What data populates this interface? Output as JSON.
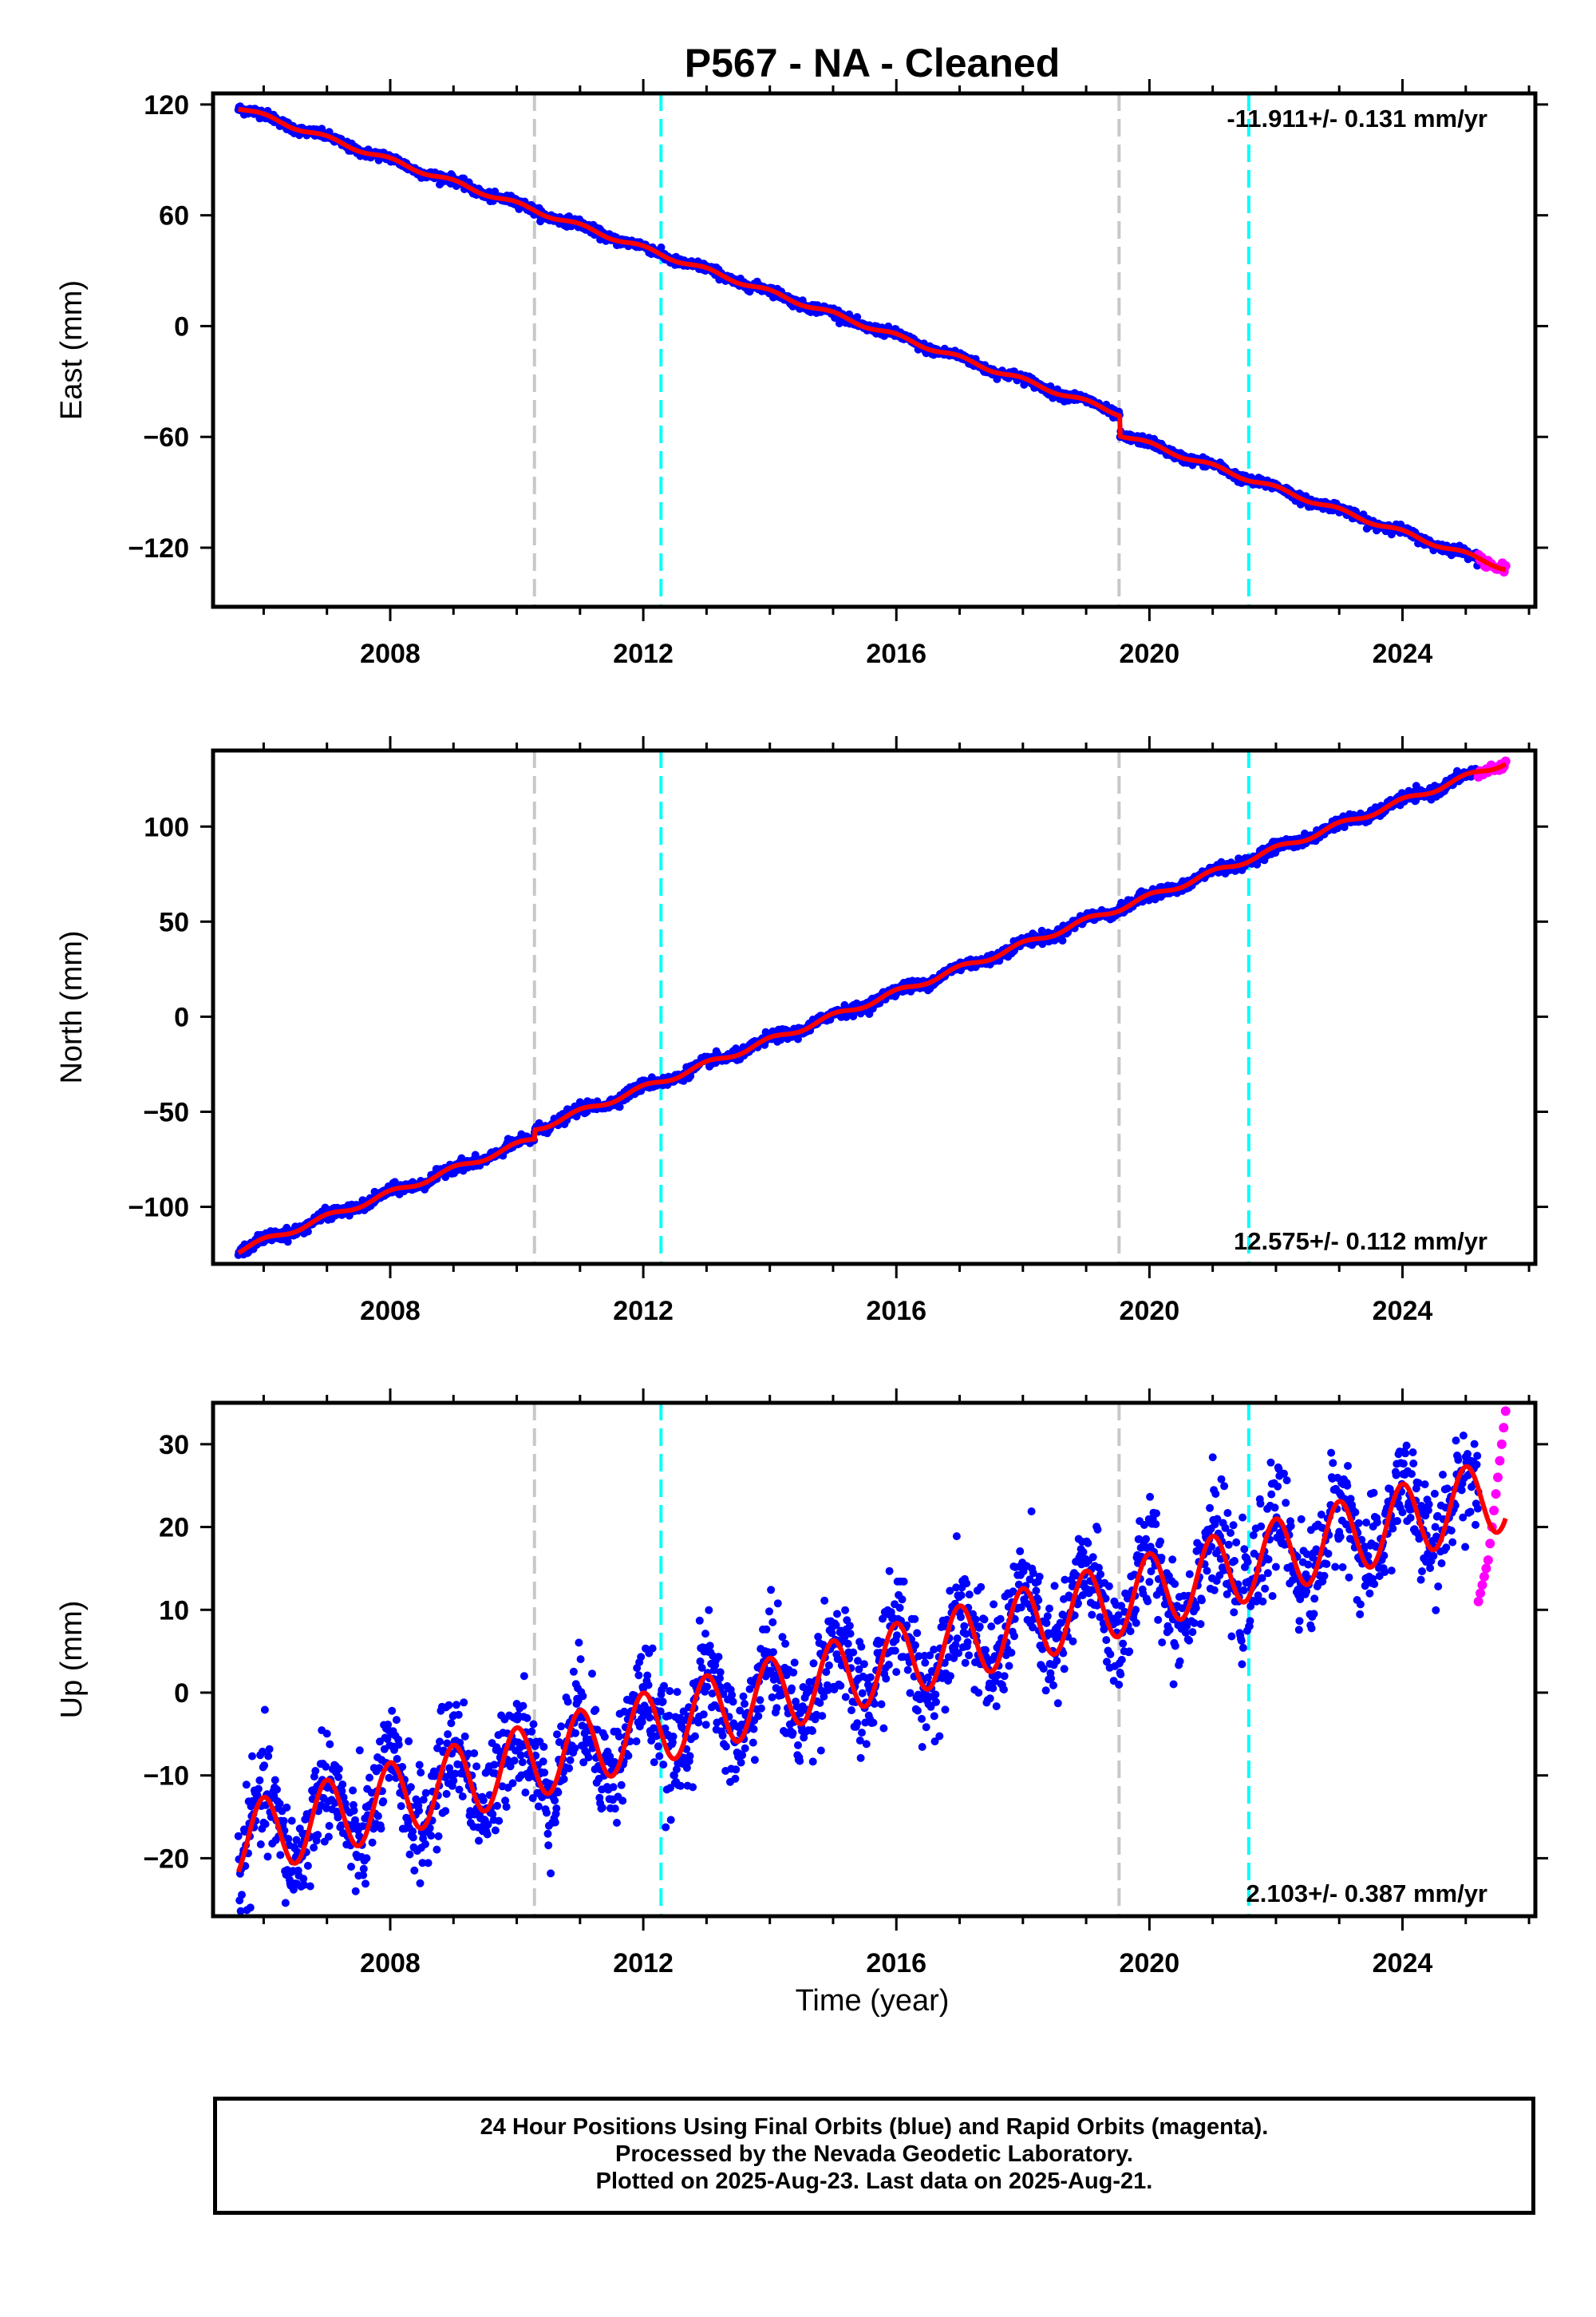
{
  "title": "P567  - NA - Cleaned",
  "x_axis_label": "Time (year)",
  "caption": {
    "line1": "24 Hour Positions Using Final Orbits (blue) and Rapid Orbits (magenta).",
    "line2": "Processed by the Nevada Geodetic Laboratory.",
    "line3": "Plotted on 2025-Aug-23. Last data on 2025-Aug-21."
  },
  "colors": {
    "final_orbits": "#0000ff",
    "rapid_orbits": "#ff00ff",
    "model_fit": "#ff0000",
    "gray_event": "#c8c8c8",
    "cyan_event": "#00ffff",
    "frame": "#000000"
  },
  "event_lines": {
    "gray": [
      2010.28,
      2019.52
    ],
    "cyan": [
      2012.28,
      2021.57
    ]
  },
  "chart_data": [
    {
      "type": "scatter",
      "name": "east",
      "ylabel": "East (mm)",
      "rate_text": "-11.911+/- 0.131 mm/yr",
      "rate_position": "top-right",
      "xlim": [
        2005.2,
        2026.1
      ],
      "ylim": [
        -152,
        126
      ],
      "yticks": [
        120,
        60,
        0,
        -60,
        -120
      ],
      "xticks": [
        2008,
        2012,
        2016,
        2020,
        2024
      ],
      "data_start": 2005.6,
      "data_end": 2025.2,
      "rapid_start": 2025.2,
      "rapid_end": 2025.63,
      "fit": {
        "intercept_at_t0": 118.5,
        "t0": 2005.6,
        "rate_mm_per_yr": -11.911,
        "seasonal_amplitude": 1.2,
        "offsets": [
          {
            "epoch": 2019.53,
            "size": -11
          }
        ]
      },
      "scatter_noise_mm": 1.2
    },
    {
      "type": "scatter",
      "name": "north",
      "ylabel": "North (mm)",
      "rate_text": "12.575+/- 0.112 mm/yr",
      "rate_position": "bottom-right",
      "xlim": [
        2005.2,
        2026.1
      ],
      "ylim": [
        -130,
        140
      ],
      "yticks": [
        100,
        50,
        0,
        -50,
        -100
      ],
      "xticks": [
        2008,
        2012,
        2016,
        2020,
        2024
      ],
      "data_start": 2005.6,
      "data_end": 2025.2,
      "rapid_start": 2025.2,
      "rapid_end": 2025.63,
      "fit": {
        "intercept_at_t0": -123,
        "t0": 2005.6,
        "rate_mm_per_yr": 12.575,
        "seasonal_amplitude": 1.5,
        "offsets": [
          {
            "epoch": 2010.28,
            "size": 5
          }
        ]
      },
      "scatter_noise_mm": 1.4
    },
    {
      "type": "scatter",
      "name": "up",
      "ylabel": "Up (mm)",
      "rate_text": "2.103+/- 0.387 mm/yr",
      "rate_position": "bottom-right",
      "xlim": [
        2005.2,
        2026.1
      ],
      "ylim": [
        -27,
        35
      ],
      "yticks": [
        30,
        20,
        10,
        0,
        -10,
        -20
      ],
      "xticks": [
        2008,
        2012,
        2016,
        2020,
        2024
      ],
      "data_start": 2005.6,
      "data_end": 2025.2,
      "rapid_start": 2025.2,
      "rapid_end": 2025.63,
      "rapid_values": [
        11,
        12,
        13,
        14,
        15,
        16,
        18,
        20,
        22,
        24,
        26,
        28,
        30,
        32,
        34
      ],
      "fit": {
        "intercept_at_t0": -18,
        "t0": 2005.6,
        "rate_mm_per_yr": 2.103,
        "seasonal_amplitude": 4.5,
        "offsets": []
      },
      "scatter_noise_mm": 3.2
    }
  ]
}
